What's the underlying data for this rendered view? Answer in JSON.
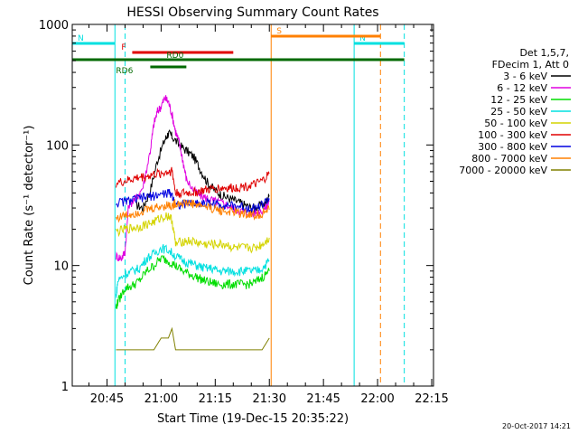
{
  "chart_data": {
    "type": "line",
    "title": "HESSI Observing Summary Count Rates",
    "xlabel": "Start Time (19-Dec-15 20:35:22)",
    "ylabel": "Count Rate (s⁻¹ detector⁻¹)",
    "y_scale": "log",
    "ylim": [
      1,
      1000
    ],
    "xlim_minutes": [
      35.37,
      135.5
    ],
    "x_ticks": [
      {
        "label": "20:45",
        "minute": 45
      },
      {
        "label": "21:00",
        "minute": 60
      },
      {
        "label": "21:15",
        "minute": 75
      },
      {
        "label": "21:30",
        "minute": 90
      },
      {
        "label": "21:45",
        "minute": 105
      },
      {
        "label": "22:00",
        "minute": 120
      },
      {
        "label": "22:15",
        "minute": 135
      }
    ],
    "y_ticks": [
      {
        "label": "1",
        "value": 1
      },
      {
        "label": "10",
        "value": 10
      },
      {
        "label": "100",
        "value": 100
      },
      {
        "label": "1000",
        "value": 1000
      }
    ],
    "legend": {
      "placement": "right",
      "header": [
        "Det 1,5,7,",
        "FDecim 1, Att 0"
      ],
      "entries": [
        {
          "label": "3 - 6 keV",
          "color": "#000000"
        },
        {
          "label": "6 - 12 keV",
          "color": "#e000e0"
        },
        {
          "label": "12 - 25 keV",
          "color": "#00dd00"
        },
        {
          "label": "25 - 50 keV",
          "color": "#00e0e0"
        },
        {
          "label": "50 - 100 keV",
          "color": "#d4d400"
        },
        {
          "label": "100 - 300 keV",
          "color": "#e00000"
        },
        {
          "label": "300 - 800 keV",
          "color": "#0000e0"
        },
        {
          "label": "800 - 7000 keV",
          "color": "#ff8000"
        },
        {
          "label": "7000 - 20000 keV",
          "color": "#808000"
        }
      ]
    },
    "series": [
      {
        "name": "3 - 6 keV",
        "color": "#000000",
        "points": [
          [
            53,
            32
          ],
          [
            55,
            30
          ],
          [
            57,
            42
          ],
          [
            59,
            75
          ],
          [
            61,
            110
          ],
          [
            62,
            125
          ],
          [
            63,
            118
          ],
          [
            65,
            100
          ],
          [
            67,
            90
          ],
          [
            69,
            80
          ],
          [
            71,
            62
          ],
          [
            73,
            48
          ],
          [
            75,
            42
          ],
          [
            77,
            38
          ],
          [
            79,
            36
          ],
          [
            81,
            34
          ],
          [
            83,
            32
          ],
          [
            85,
            30
          ],
          [
            87,
            31
          ],
          [
            89,
            33
          ],
          [
            90,
            38
          ]
        ]
      },
      {
        "name": "6 - 12 keV",
        "color": "#e000e0",
        "points": [
          [
            47.5,
            12
          ],
          [
            49,
            11.5
          ],
          [
            50,
            13
          ],
          [
            51,
            32
          ],
          [
            53,
            36
          ],
          [
            55,
            45
          ],
          [
            57,
            90
          ],
          [
            58,
            150
          ],
          [
            59,
            190
          ],
          [
            60,
            210
          ],
          [
            61,
            245
          ],
          [
            62,
            230
          ],
          [
            63,
            180
          ],
          [
            64,
            130
          ],
          [
            65,
            105
          ],
          [
            66,
            75
          ],
          [
            67,
            52
          ],
          [
            69,
            42
          ],
          [
            71,
            38
          ],
          [
            73,
            36
          ],
          [
            75,
            34
          ],
          [
            77,
            33
          ],
          [
            79,
            31
          ],
          [
            81,
            29
          ],
          [
            83,
            28
          ],
          [
            85,
            27
          ],
          [
            87,
            28
          ],
          [
            89,
            30
          ],
          [
            90,
            34
          ]
        ]
      },
      {
        "name": "12 - 25 keV",
        "color": "#00dd00",
        "points": [
          [
            47.5,
            4.5
          ],
          [
            48,
            5.0
          ],
          [
            50,
            6.5
          ],
          [
            52,
            6.8
          ],
          [
            54,
            7.5
          ],
          [
            56,
            9
          ],
          [
            58,
            10
          ],
          [
            60,
            11.5
          ],
          [
            62,
            11
          ],
          [
            64,
            10
          ],
          [
            66,
            9
          ],
          [
            68,
            8.5
          ],
          [
            70,
            8
          ],
          [
            72,
            7.5
          ],
          [
            74,
            7.2
          ],
          [
            76,
            7
          ],
          [
            78,
            7
          ],
          [
            80,
            7
          ],
          [
            82,
            7
          ],
          [
            84,
            7
          ],
          [
            86,
            7.2
          ],
          [
            88,
            8
          ],
          [
            90,
            9
          ]
        ]
      },
      {
        "name": "25 - 50 keV",
        "color": "#00e0e0",
        "points": [
          [
            47.5,
            5.5
          ],
          [
            48,
            7.5
          ],
          [
            50,
            8.5
          ],
          [
            52,
            9
          ],
          [
            54,
            9.5
          ],
          [
            56,
            11.5
          ],
          [
            58,
            12.5
          ],
          [
            60,
            14
          ],
          [
            62,
            13.5
          ],
          [
            64,
            12
          ],
          [
            66,
            11
          ],
          [
            68,
            10.5
          ],
          [
            70,
            10
          ],
          [
            72,
            9.5
          ],
          [
            74,
            9.5
          ],
          [
            76,
            9
          ],
          [
            78,
            9
          ],
          [
            80,
            9
          ],
          [
            82,
            9
          ],
          [
            84,
            9
          ],
          [
            86,
            9
          ],
          [
            88,
            9.5
          ],
          [
            90,
            11
          ]
        ]
      },
      {
        "name": "50 - 100 keV",
        "color": "#d4d400",
        "points": [
          [
            47.5,
            19
          ],
          [
            50,
            20
          ],
          [
            52,
            20.5
          ],
          [
            54,
            21
          ],
          [
            56,
            22
          ],
          [
            58,
            23
          ],
          [
            60,
            25
          ],
          [
            62,
            26
          ],
          [
            63,
            24
          ],
          [
            64,
            15
          ],
          [
            66,
            16
          ],
          [
            68,
            16
          ],
          [
            70,
            15.5
          ],
          [
            72,
            15
          ],
          [
            74,
            15
          ],
          [
            76,
            15
          ],
          [
            78,
            15
          ],
          [
            80,
            14
          ],
          [
            82,
            14
          ],
          [
            84,
            14
          ],
          [
            86,
            14
          ],
          [
            88,
            15
          ],
          [
            90,
            17
          ]
        ]
      },
      {
        "name": "100 - 300 keV",
        "color": "#e00000",
        "points": [
          [
            47.5,
            48
          ],
          [
            50,
            50
          ],
          [
            52,
            52
          ],
          [
            54,
            54
          ],
          [
            56,
            55
          ],
          [
            58,
            57
          ],
          [
            60,
            58
          ],
          [
            62,
            60
          ],
          [
            63,
            62
          ],
          [
            64,
            40
          ],
          [
            66,
            40
          ],
          [
            68,
            40
          ],
          [
            70,
            41
          ],
          [
            72,
            42
          ],
          [
            74,
            43
          ],
          [
            76,
            44
          ],
          [
            78,
            44
          ],
          [
            80,
            44
          ],
          [
            82,
            45
          ],
          [
            84,
            46
          ],
          [
            86,
            47
          ],
          [
            88,
            50
          ],
          [
            90,
            58
          ]
        ]
      },
      {
        "name": "300 - 800 keV",
        "color": "#0000e0",
        "points": [
          [
            47.5,
            33
          ],
          [
            50,
            34
          ],
          [
            52,
            35
          ],
          [
            54,
            36
          ],
          [
            56,
            37
          ],
          [
            58,
            38
          ],
          [
            60,
            39
          ],
          [
            62,
            40
          ],
          [
            63,
            39
          ],
          [
            64,
            32
          ],
          [
            66,
            32
          ],
          [
            68,
            33
          ],
          [
            70,
            33
          ],
          [
            72,
            33
          ],
          [
            74,
            33
          ],
          [
            76,
            32
          ],
          [
            78,
            32
          ],
          [
            80,
            31
          ],
          [
            82,
            31
          ],
          [
            84,
            30
          ],
          [
            86,
            30
          ],
          [
            88,
            32
          ],
          [
            90,
            36
          ]
        ]
      },
      {
        "name": "800 - 7000 keV",
        "color": "#ff8000",
        "points": [
          [
            47.5,
            25
          ],
          [
            50,
            26
          ],
          [
            52,
            27
          ],
          [
            54,
            28
          ],
          [
            56,
            29
          ],
          [
            58,
            30
          ],
          [
            60,
            31
          ],
          [
            62,
            32
          ],
          [
            63,
            31
          ],
          [
            64,
            33
          ],
          [
            66,
            33
          ],
          [
            68,
            33
          ],
          [
            70,
            32
          ],
          [
            72,
            31
          ],
          [
            74,
            30
          ],
          [
            76,
            29
          ],
          [
            78,
            28
          ],
          [
            80,
            28
          ],
          [
            82,
            27
          ],
          [
            84,
            27
          ],
          [
            86,
            26
          ],
          [
            88,
            27
          ],
          [
            90,
            29
          ]
        ]
      },
      {
        "name": "7000 - 20000 keV",
        "color": "#808000",
        "points": [
          [
            47.5,
            2
          ],
          [
            50,
            2
          ],
          [
            52,
            2
          ],
          [
            54,
            2
          ],
          [
            56,
            2
          ],
          [
            58,
            2
          ],
          [
            60,
            2.5
          ],
          [
            62,
            2.5
          ],
          [
            63,
            3
          ],
          [
            64,
            2
          ],
          [
            66,
            2
          ],
          [
            68,
            2
          ],
          [
            70,
            2
          ],
          [
            72,
            2
          ],
          [
            74,
            2
          ],
          [
            76,
            2
          ],
          [
            78,
            2
          ],
          [
            80,
            2
          ],
          [
            82,
            2
          ],
          [
            84,
            2
          ],
          [
            86,
            2
          ],
          [
            88,
            2
          ],
          [
            90,
            2.5
          ]
        ]
      }
    ],
    "vertical_markers": [
      {
        "minute": 35.37,
        "color": "#00e0e0",
        "style": "solid"
      },
      {
        "minute": 47.2,
        "color": "#00e0e0",
        "style": "solid"
      },
      {
        "minute": 50.0,
        "color": "#00e0e0",
        "style": "dashed"
      },
      {
        "minute": 90.5,
        "color": "#ff8000",
        "style": "solid"
      },
      {
        "minute": 113.5,
        "color": "#00e0e0",
        "style": "solid"
      },
      {
        "minute": 120.8,
        "color": "#ff8000",
        "style": "dashed"
      },
      {
        "minute": 127.4,
        "color": "#00e0e0",
        "style": "dashed"
      }
    ],
    "flag_bars": [
      {
        "label": "N",
        "color": "#00e0e0",
        "level": 1,
        "start": 35.37,
        "end": 47.2
      },
      {
        "label": "N",
        "color": "#00e0e0",
        "level": 1,
        "start": 113.5,
        "end": 127.4
      },
      {
        "label": "S",
        "color": "#ff8000",
        "level": 0,
        "start": 90.5,
        "end": 120.8
      },
      {
        "label": "F",
        "color": "#e00000",
        "level": 2,
        "start": 52.0,
        "end": 80.0
      },
      {
        "label": "",
        "color": "#006a00",
        "level": 3,
        "start": 35.37,
        "end": 127.4
      },
      {
        "label": "RD0",
        "color": "#006a00",
        "level": 3,
        "start": 57.0,
        "end": 77.0
      },
      {
        "label": "RD6",
        "color": "#006a00",
        "level": 4,
        "start": 57.0,
        "end": 67.0
      }
    ],
    "footer_timestamp": "20-Oct-2017 14:21"
  }
}
